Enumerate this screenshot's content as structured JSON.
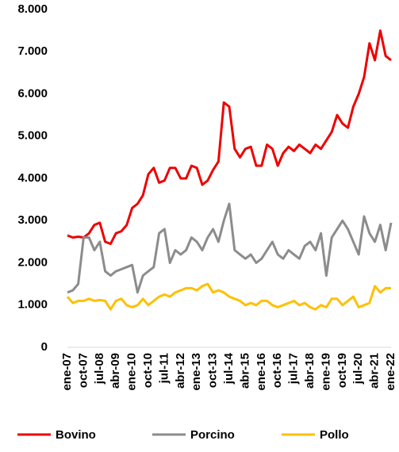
{
  "chart_data": {
    "type": "line",
    "categories": [
      "ene-07",
      null,
      null,
      "oct-07",
      null,
      null,
      "jul-08",
      null,
      null,
      "abr-09",
      null,
      null,
      "ene-10",
      null,
      null,
      "oct-10",
      null,
      null,
      "jul-11",
      null,
      null,
      "abr-12",
      null,
      null,
      "ene-13",
      null,
      null,
      "oct-13",
      null,
      null,
      "jul-14",
      null,
      null,
      "abr-15",
      null,
      null,
      "ene-16",
      null,
      null,
      "oct-16",
      null,
      null,
      "jul-17",
      null,
      null,
      "abr-18",
      null,
      null,
      "ene-19",
      null,
      null,
      "oct-19",
      null,
      null,
      "jul-20",
      null,
      null,
      "abr-21",
      null,
      null,
      "ene-22"
    ],
    "series": [
      {
        "name": "Bovino",
        "color": "#ee0000",
        "values": [
          2650,
          2600,
          2620,
          2600,
          2700,
          2900,
          2950,
          2500,
          2450,
          2700,
          2750,
          2900,
          3300,
          3400,
          3600,
          4100,
          4250,
          3900,
          3950,
          4250,
          4250,
          4000,
          4000,
          4300,
          4250,
          3850,
          3950,
          4200,
          4400,
          5800,
          5700,
          4700,
          4500,
          4700,
          4750,
          4300,
          4300,
          4800,
          4700,
          4300,
          4600,
          4750,
          4650,
          4800,
          4700,
          4600,
          4800,
          4700,
          4900,
          5100,
          5500,
          5300,
          5200,
          5700,
          6000,
          6400,
          7200,
          6800,
          7500,
          6900,
          6800
        ]
      },
      {
        "name": "Porcino",
        "color": "#8c8c8c",
        "values": [
          1300,
          1350,
          1500,
          2600,
          2600,
          2300,
          2500,
          1800,
          1700,
          1800,
          1850,
          1900,
          1950,
          1300,
          1700,
          1800,
          1900,
          2700,
          2800,
          2000,
          2300,
          2200,
          2300,
          2600,
          2500,
          2300,
          2600,
          2800,
          2500,
          3000,
          3400,
          2300,
          2200,
          2100,
          2200,
          2000,
          2100,
          2300,
          2500,
          2200,
          2100,
          2300,
          2200,
          2100,
          2400,
          2500,
          2300,
          2700,
          1700,
          2600,
          2800,
          3000,
          2800,
          2500,
          2200,
          3100,
          2700,
          2500,
          2900,
          2300,
          2950
        ]
      },
      {
        "name": "Pollo",
        "color": "#ffc000",
        "values": [
          1200,
          1050,
          1100,
          1100,
          1150,
          1100,
          1120,
          1100,
          900,
          1100,
          1150,
          1000,
          950,
          1000,
          1150,
          1000,
          1100,
          1200,
          1250,
          1200,
          1300,
          1350,
          1400,
          1400,
          1350,
          1450,
          1500,
          1300,
          1350,
          1300,
          1200,
          1150,
          1100,
          1000,
          1050,
          1000,
          1100,
          1100,
          1000,
          950,
          1000,
          1050,
          1100,
          1000,
          1050,
          950,
          900,
          1000,
          950,
          1150,
          1150,
          1000,
          1100,
          1200,
          950,
          1000,
          1050,
          1450,
          1300,
          1400,
          1400
        ]
      }
    ],
    "ylim": [
      0,
      8000
    ],
    "yticks": [
      0,
      {
        "value": 1000,
        "label": "1.000"
      },
      {
        "value": 2000,
        "label": "2.000"
      },
      {
        "value": 3000,
        "label": "3.000"
      },
      {
        "value": 4000,
        "label": "4.000"
      },
      {
        "value": 5000,
        "label": "5.000"
      },
      {
        "value": 6000,
        "label": "6.000"
      },
      {
        "value": 7000,
        "label": "7.000"
      },
      {
        "value": 8000,
        "label": "8.000"
      }
    ],
    "legend": "bottom"
  }
}
